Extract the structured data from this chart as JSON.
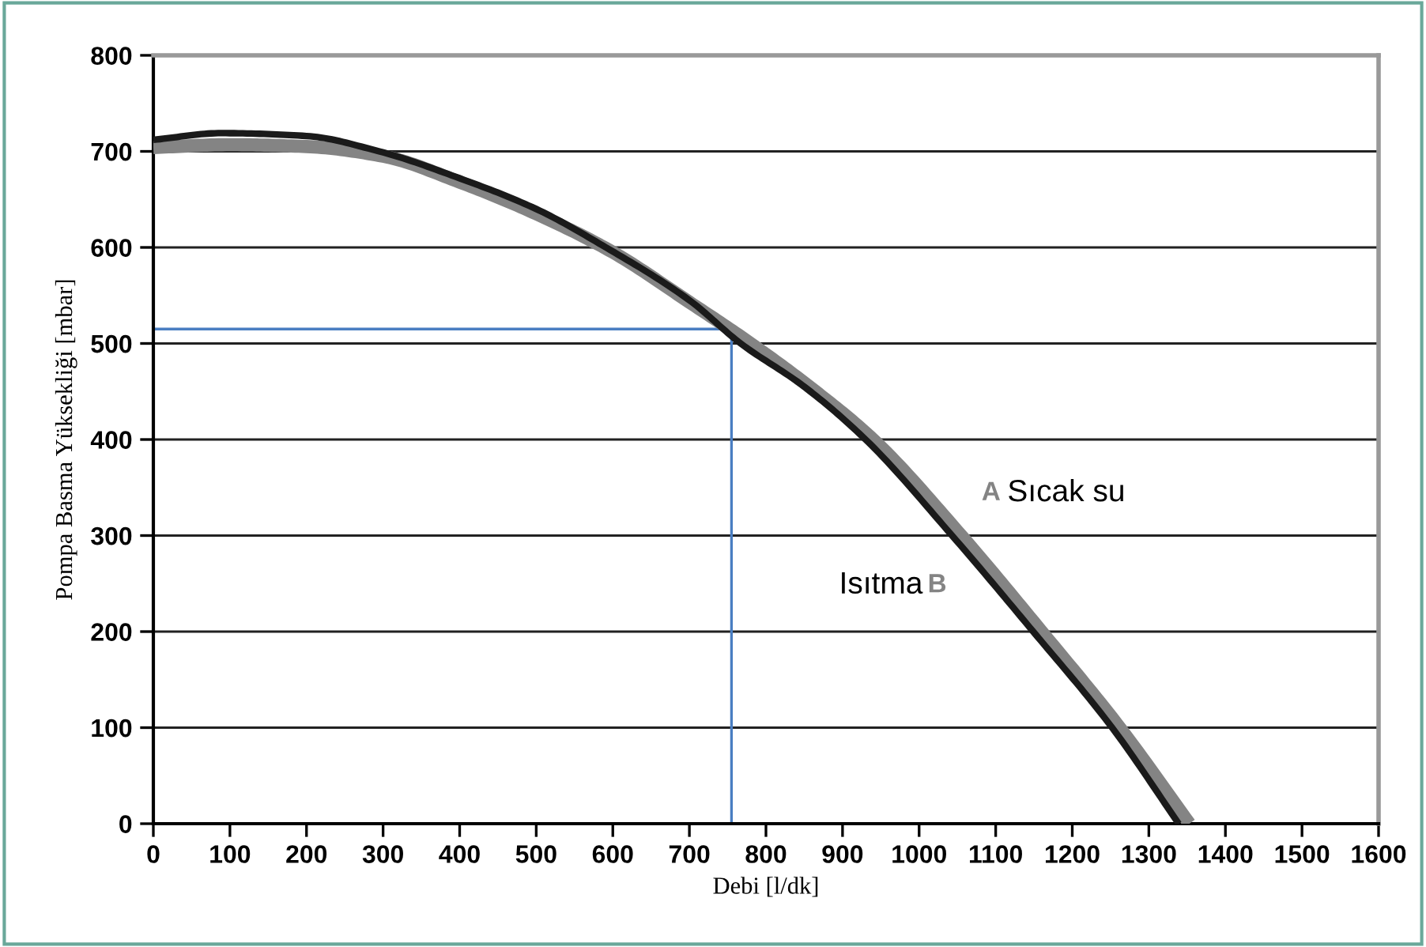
{
  "chart_data": {
    "type": "line",
    "xlabel": "Debi [l/dk]",
    "ylabel": "Pompa Basma Yüksekliği [mbar]",
    "xlim": [
      0,
      1600
    ],
    "xticks": [
      0,
      100,
      200,
      300,
      400,
      500,
      600,
      700,
      800,
      900,
      1000,
      1100,
      1200,
      1300,
      1400,
      1500,
      1600
    ],
    "ylim": [
      0,
      800
    ],
    "yticks": [
      0,
      100,
      200,
      300,
      400,
      500,
      600,
      700,
      800
    ],
    "grid": "y",
    "marker": "none",
    "line_style": "solid",
    "series": [
      {
        "color": "#848484",
        "x": [
          0,
          100,
          200,
          300,
          400,
          500,
          600,
          700,
          780,
          860,
          940,
          1055,
          1160,
          1262,
          1353
        ],
        "values": [
          704,
          707,
          705,
          695,
          668,
          635,
          595,
          543,
          500,
          453,
          400,
          300,
          200,
          100,
          0
        ]
      },
      {
        "color": "#1a1a1a",
        "x": [
          0,
          89,
          200,
          295,
          400,
          500,
          591,
          700,
          767,
          850,
          930,
          1043,
          1149,
          1252,
          1339
        ],
        "values": [
          712,
          719,
          716,
          700,
          672,
          640,
          600,
          545,
          500,
          455,
          400,
          300,
          200,
          100,
          0
        ]
      }
    ],
    "ref_lines": [
      {
        "axis": "x",
        "value": 755,
        "color": "#4a7ec2"
      },
      {
        "axis": "y",
        "value": 515,
        "color": "#4a7ec2"
      }
    ],
    "annotations": [
      "A",
      "Sıcak su",
      "Isıtma",
      "B"
    ]
  }
}
